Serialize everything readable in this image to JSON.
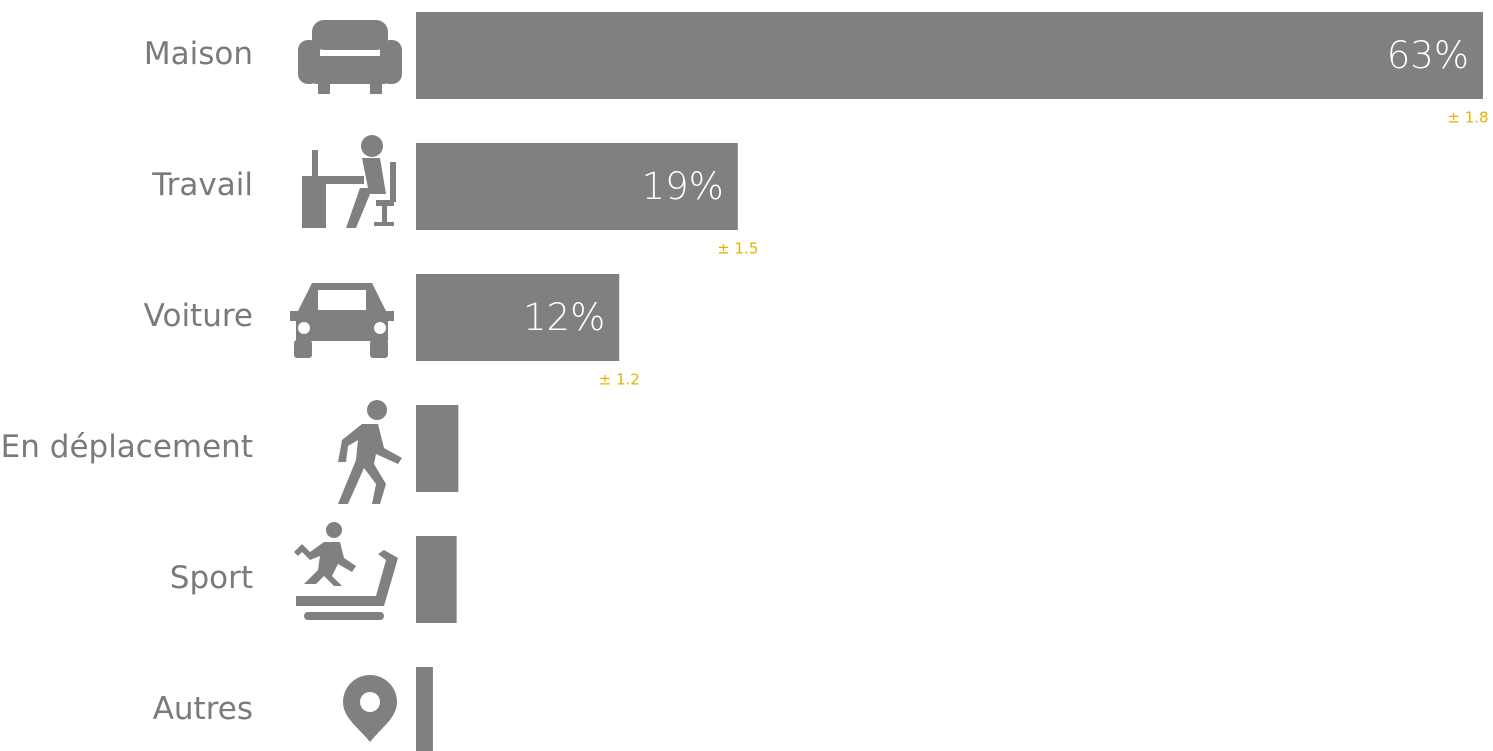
{
  "chart_data": {
    "type": "bar",
    "orientation": "horizontal",
    "categories": [
      "Maison",
      "Travail",
      "Voiture",
      "En déplacement",
      "Sport",
      "Autres"
    ],
    "values": [
      63,
      19,
      12,
      2.5,
      2.4,
      1
    ],
    "value_labels": [
      "63%",
      "19%",
      "12%",
      null,
      null,
      null
    ],
    "error_labels": [
      "± 1.8",
      "± 1.5",
      "± 1.2",
      null,
      null,
      null
    ],
    "color": "#808080",
    "xlim": [
      0,
      63
    ]
  }
}
